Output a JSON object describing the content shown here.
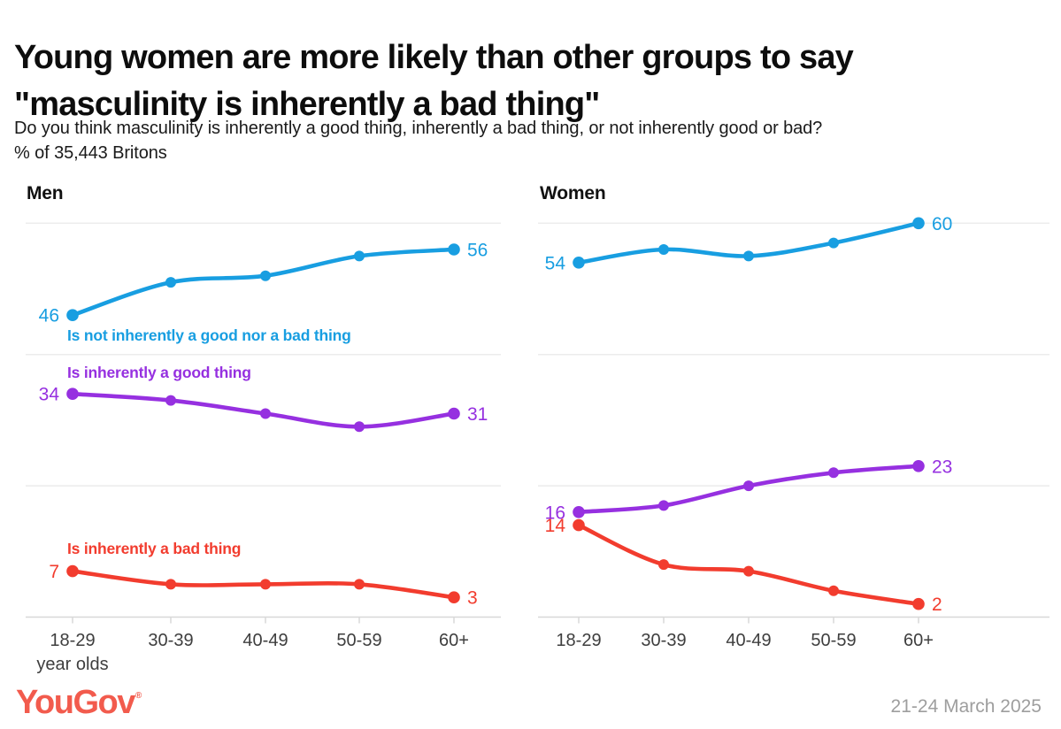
{
  "header": {
    "title_line1": "Young women are more likely than other groups to say",
    "title_line2": "\"masculinity is inherently a bad thing\"",
    "subtitle_line1": "Do you think masculinity is inherently a good thing, inherently a bad thing, or not inherently good or bad?",
    "subtitle_line2": "% of 35,443 Britons"
  },
  "footer": {
    "logo_text": "YouGov",
    "logo_reg": "®",
    "date": "21-24 March 2025"
  },
  "colors": {
    "blue": "#189EE1",
    "purple": "#9630E0",
    "red": "#F23C2E",
    "logo": "#F25B4D",
    "grid": "#ECECEC",
    "axis": "#D8D8D8",
    "tick_label": "#3E3E3E",
    "date_text": "#9E9E9E"
  },
  "chart_data": [
    {
      "type": "line",
      "title": "Men",
      "categories": [
        "18-29",
        "30-39",
        "40-49",
        "50-59",
        "60+"
      ],
      "x_sublabel": "year olds",
      "xlabel": "",
      "ylabel": "",
      "ylim": [
        0,
        65
      ],
      "gridline_values": [
        20,
        40,
        60
      ],
      "grid": "horizontal-only",
      "legend_position": "inline-labels-on-left-chart",
      "series": [
        {
          "name": "Is not inherently a good nor a bad thing",
          "color_key": "blue",
          "values": [
            46,
            51,
            52,
            55,
            56
          ],
          "first_label": 46,
          "last_label": 56
        },
        {
          "name": "Is inherently a good thing",
          "color_key": "purple",
          "values": [
            34,
            33,
            31,
            29,
            31
          ],
          "first_label": 34,
          "last_label": 31
        },
        {
          "name": "Is inherently a bad thing",
          "color_key": "red",
          "values": [
            7,
            5,
            5,
            5,
            3
          ],
          "first_label": 7,
          "last_label": 3
        }
      ]
    },
    {
      "type": "line",
      "title": "Women",
      "categories": [
        "18-29",
        "30-39",
        "40-49",
        "50-59",
        "60+"
      ],
      "xlabel": "",
      "ylabel": "",
      "ylim": [
        0,
        65
      ],
      "gridline_values": [
        20,
        40,
        60
      ],
      "grid": "horizontal-only",
      "series": [
        {
          "name": "Is not inherently a good nor a bad thing",
          "color_key": "blue",
          "values": [
            54,
            56,
            55,
            57,
            60
          ],
          "first_label": 54,
          "last_label": 60
        },
        {
          "name": "Is inherently a good thing",
          "color_key": "purple",
          "values": [
            16,
            17,
            20,
            22,
            23
          ],
          "first_label": 16,
          "last_label": 23
        },
        {
          "name": "Is inherently a bad thing",
          "color_key": "red",
          "values": [
            14,
            8,
            7,
            4,
            2
          ],
          "first_label": 14,
          "last_label": 2
        }
      ]
    }
  ]
}
